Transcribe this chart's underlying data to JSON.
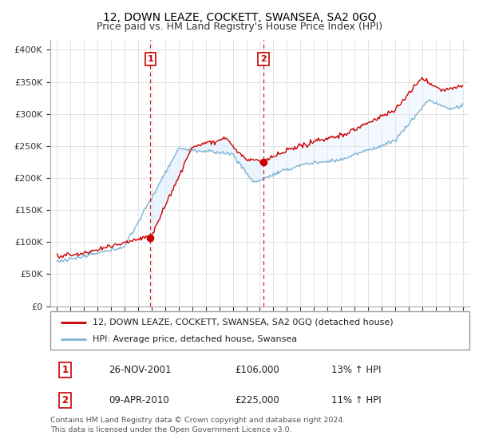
{
  "title": "12, DOWN LEAZE, COCKETT, SWANSEA, SA2 0GQ",
  "subtitle": "Price paid vs. HM Land Registry's House Price Index (HPI)",
  "title_fontsize": 10,
  "subtitle_fontsize": 9,
  "ylabel_ticks": [
    "£0",
    "£50K",
    "£100K",
    "£150K",
    "£200K",
    "£250K",
    "£300K",
    "£350K",
    "£400K"
  ],
  "ytick_values": [
    0,
    50000,
    100000,
    150000,
    200000,
    250000,
    300000,
    350000,
    400000
  ],
  "ylim": [
    0,
    415000
  ],
  "xlim_start": 1994.5,
  "xlim_end": 2025.5,
  "sale1_x": 2001.9,
  "sale1_y": 106000,
  "sale2_x": 2010.27,
  "sale2_y": 225000,
  "line_color_property": "#cc0000",
  "line_color_hpi": "#7fb3d3",
  "fill_color_hpi": "#ddeeff",
  "vline_color": "#cc0000",
  "legend_line1": "12, DOWN LEAZE, COCKETT, SWANSEA, SA2 0GQ (detached house)",
  "legend_line2": "HPI: Average price, detached house, Swansea",
  "table_row1": [
    "1",
    "26-NOV-2001",
    "£106,000",
    "13% ↑ HPI"
  ],
  "table_row2": [
    "2",
    "09-APR-2010",
    "£225,000",
    "11% ↑ HPI"
  ],
  "footnote": "Contains HM Land Registry data © Crown copyright and database right 2024.\nThis data is licensed under the Open Government Licence v3.0.",
  "background_color": "#ffffff",
  "grid_color": "#dddddd"
}
